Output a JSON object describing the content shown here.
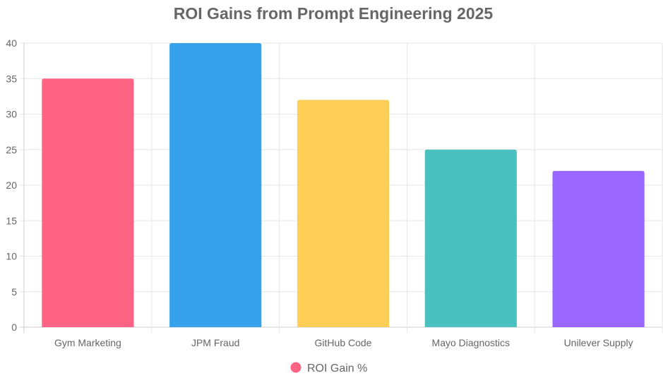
{
  "chart_data": {
    "type": "bar",
    "title": "ROI Gains from Prompt Engineering 2025",
    "categories": [
      "Gym Marketing",
      "JPM Fraud",
      "GitHub Code",
      "Mayo Diagnostics",
      "Unilever Supply"
    ],
    "series": [
      {
        "name": "ROI Gain %",
        "values": [
          35,
          40,
          32,
          25,
          22
        ],
        "colors": [
          "#ff6384",
          "#36a2eb",
          "#ffce56",
          "#4bc0c0",
          "#9966ff"
        ]
      }
    ],
    "ylim": [
      0,
      40
    ],
    "y_ticks": [
      "0",
      "5",
      "10",
      "15",
      "20",
      "25",
      "30",
      "35",
      "40"
    ],
    "grid": true,
    "legend_position": "bottom",
    "text_color": "#666666",
    "grid_color": "#e6e6e6"
  }
}
